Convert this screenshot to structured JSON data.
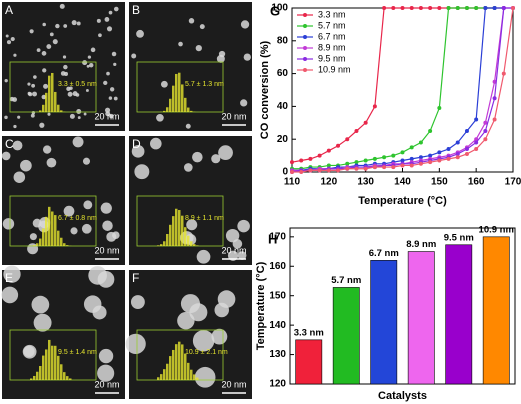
{
  "panels": [
    {
      "label": "A",
      "size": "3.3 ± 0.5 nm",
      "scale": "20 nm"
    },
    {
      "label": "B",
      "size": "5.7 ± 1.3 nm",
      "scale": "20 nm"
    },
    {
      "label": "C",
      "size": "6.7 ± 0.8 nm",
      "scale": "20 nm"
    },
    {
      "label": "D",
      "size": "8.9 ± 1.1 nm",
      "scale": "20 nm"
    },
    {
      "label": "E",
      "size": "9.5 ± 1.4 nm",
      "scale": "20 nm"
    },
    {
      "label": "F",
      "size": "10.9 ± 2.1 nm",
      "scale": "20 nm"
    }
  ],
  "chart_data": [
    {
      "type": "line",
      "panel_label": "G",
      "xlabel": "Temperature (°C)",
      "ylabel": "CO conversion (%)",
      "x": [
        110,
        112.5,
        115,
        117.5,
        120,
        122.5,
        125,
        127.5,
        130,
        132.5,
        135,
        137.5,
        140,
        142.5,
        145,
        147.5,
        150,
        152.5,
        155,
        157.5,
        160,
        162.5,
        165,
        167.5,
        170
      ],
      "xlim": [
        110,
        170
      ],
      "xticks": [
        110,
        120,
        130,
        140,
        150,
        160,
        170
      ],
      "ylim": [
        0,
        100
      ],
      "yticks": [
        0,
        20,
        40,
        60,
        80,
        100
      ],
      "series": [
        {
          "name": "3.3 nm",
          "color": "#e8264a",
          "values": [
            6,
            7,
            8,
            10,
            13,
            16,
            20,
            25,
            30,
            40,
            100,
            100,
            100,
            100,
            100,
            100,
            100,
            100,
            100,
            100,
            100,
            100,
            100,
            100,
            null
          ]
        },
        {
          "name": "5.7 nm",
          "color": "#2ec42e",
          "values": [
            2,
            2,
            3,
            3,
            4,
            4,
            5,
            6,
            7,
            8,
            9,
            10,
            12,
            15,
            18,
            25,
            39,
            100,
            100,
            100,
            100,
            100,
            100,
            null,
            null
          ]
        },
        {
          "name": "6.7 nm",
          "color": "#2b3fd6",
          "values": [
            1,
            1,
            2,
            2,
            2,
            3,
            3,
            4,
            4,
            5,
            5,
            6,
            7,
            8,
            9,
            10,
            12,
            14,
            18,
            25,
            32,
            100,
            100,
            100,
            null
          ]
        },
        {
          "name": "8.9 nm",
          "color": "#c23bd6",
          "values": [
            1,
            1,
            1,
            2,
            2,
            2,
            3,
            3,
            3,
            4,
            4,
            5,
            5,
            6,
            7,
            8,
            9,
            10,
            12,
            15,
            20,
            30,
            55,
            100,
            100
          ]
        },
        {
          "name": "9.5 nm",
          "color": "#8a2be2",
          "values": [
            0,
            1,
            1,
            1,
            2,
            2,
            2,
            3,
            3,
            3,
            4,
            4,
            5,
            5,
            6,
            7,
            8,
            9,
            11,
            14,
            18,
            25,
            45,
            100,
            100
          ]
        },
        {
          "name": "10.9 nm",
          "color": "#f05a6e",
          "values": [
            0,
            0,
            1,
            1,
            1,
            1,
            2,
            2,
            2,
            3,
            3,
            3,
            4,
            4,
            5,
            6,
            7,
            8,
            9,
            11,
            14,
            20,
            32,
            60,
            100
          ]
        }
      ]
    },
    {
      "type": "bar",
      "panel_label": "H",
      "xlabel": "Catalysts",
      "ylabel": "Temperature (°C)",
      "categories": [
        "3.3 nm",
        "5.7 nm",
        "6.7 nm",
        "8.9 nm",
        "9.5 nm",
        "10.9 nm"
      ],
      "values": [
        135,
        152.8,
        162,
        165,
        167.3,
        170
      ],
      "colors": [
        "#f0213a",
        "#22bb22",
        "#2346d8",
        "#ee66ee",
        "#9900cc",
        "#ff8800"
      ],
      "ylim": [
        120,
        173
      ],
      "yticks": [
        120,
        130,
        140,
        150,
        160,
        170
      ]
    }
  ]
}
